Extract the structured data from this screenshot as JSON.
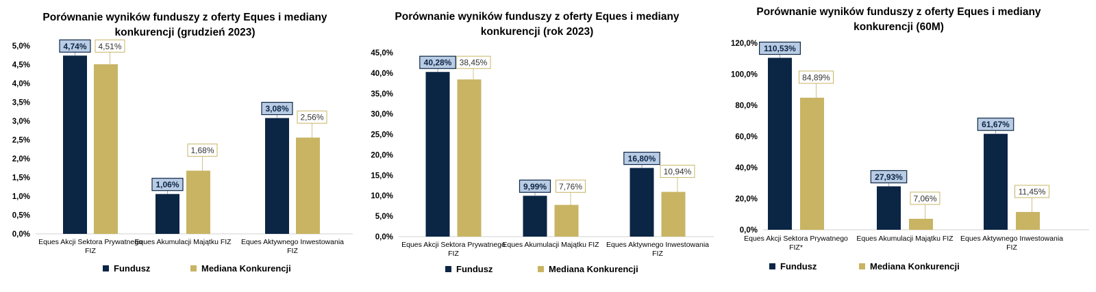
{
  "colors": {
    "fundusz": "#0b2545",
    "mediana": "#c8b463",
    "fundusz_label_bg": "#b9cce4",
    "fundusz_label_border": "#0b2545",
    "mediana_label_border": "#c8b463",
    "axis_text": "#000000",
    "axis_line": "#d0d0d0"
  },
  "legend": {
    "fundusz": "Fundusz",
    "mediana": "Mediana Konkurencji"
  },
  "chart_data": [
    {
      "type": "bar",
      "title": [
        "Porównanie wyników funduszy z oferty Eques i mediany",
        "konkurencji (grudzień 2023)"
      ],
      "categories": [
        [
          "Eques Akcji Sektora Prywatnego",
          "FIZ"
        ],
        [
          "Eques Akumulacji Majątku FIZ"
        ],
        [
          "Eques Aktywnego Inwestowania",
          "FIZ"
        ]
      ],
      "series": [
        {
          "name": "Fundusz",
          "values": [
            4.74,
            1.06,
            3.08
          ],
          "labels": [
            "4,74%",
            "1,06%",
            "3,08%"
          ]
        },
        {
          "name": "Mediana Konkurencji",
          "values": [
            4.51,
            1.68,
            2.56
          ],
          "labels": [
            "4,51%",
            "1,68%",
            "2,56%"
          ]
        }
      ],
      "ylim": [
        0,
        5
      ],
      "yticks": [
        0,
        0.5,
        1,
        1.5,
        2,
        2.5,
        3,
        3.5,
        4,
        4.5,
        5
      ],
      "ytick_labels": [
        "0,0%",
        "0,5%",
        "1,0%",
        "1,5%",
        "2,0%",
        "2,5%",
        "3,0%",
        "3,5%",
        "4,0%",
        "4,5%",
        "5,0%"
      ],
      "legend_position": "bottom",
      "grid": false
    },
    {
      "type": "bar",
      "title": [
        "Porównanie wyników funduszy z oferty Eques i mediany",
        "konkurencji (rok 2023)"
      ],
      "categories": [
        [
          "Eques Akcji Sektora Prywatnego",
          "FIZ"
        ],
        [
          "Eques Akumulacji Majątku FIZ"
        ],
        [
          "Eques Aktywnego Inwestowania",
          "FIZ"
        ]
      ],
      "series": [
        {
          "name": "Fundusz",
          "values": [
            40.28,
            9.99,
            16.8
          ],
          "labels": [
            "40,28%",
            "9,99%",
            "16,80%"
          ]
        },
        {
          "name": "Mediana Konkurencji",
          "values": [
            38.45,
            7.76,
            10.94
          ],
          "labels": [
            "38,45%",
            "7,76%",
            "10,94%"
          ]
        }
      ],
      "ylim": [
        0,
        45
      ],
      "yticks": [
        0,
        5,
        10,
        15,
        20,
        25,
        30,
        35,
        40,
        45
      ],
      "ytick_labels": [
        "0,0%",
        "5,0%",
        "10,0%",
        "15,0%",
        "20,0%",
        "25,0%",
        "30,0%",
        "35,0%",
        "40,0%",
        "45,0%"
      ],
      "legend_position": "bottom",
      "grid": false
    },
    {
      "type": "bar",
      "title": [
        "Porównanie wyników funduszy z oferty Eques i mediany",
        "konkurencji (60M)"
      ],
      "categories": [
        [
          "Eques Akcji Sektora Prywatnego",
          "FIZ*"
        ],
        [
          "Eques Akumulacji Majątku FIZ"
        ],
        [
          "Eques Aktywnego Inwestowania",
          "FIZ"
        ]
      ],
      "series": [
        {
          "name": "Fundusz",
          "values": [
            110.53,
            27.93,
            61.67
          ],
          "labels": [
            "110,53%",
            "27,93%",
            "61,67%"
          ]
        },
        {
          "name": "Mediana Konkurencji",
          "values": [
            84.89,
            7.06,
            11.45
          ],
          "labels": [
            "84,89%",
            "7,06%",
            "11,45%"
          ]
        }
      ],
      "ylim": [
        0,
        120
      ],
      "yticks": [
        0,
        20,
        40,
        60,
        80,
        100,
        120
      ],
      "ytick_labels": [
        "0,0%",
        "20,0%",
        "40,0%",
        "60,0%",
        "80,0%",
        "100,0%",
        "120,0%"
      ],
      "legend_position": "bottom",
      "grid": false
    }
  ]
}
